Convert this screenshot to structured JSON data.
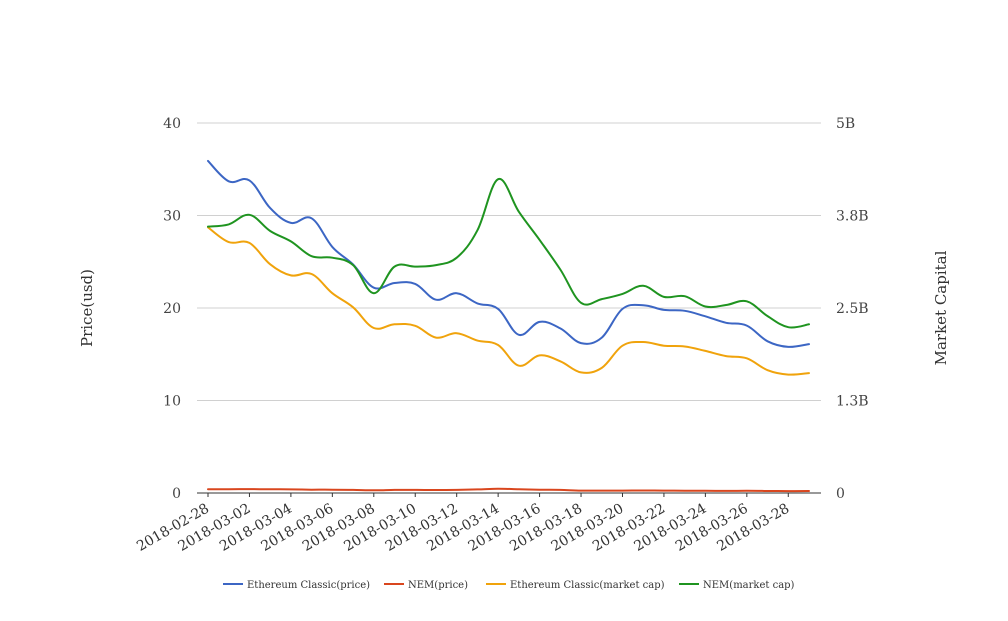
{
  "chart_data": {
    "type": "line",
    "y_left_label": "Price(usd)",
    "y_right_label": "Market Capital",
    "y_left_ticks": [
      "0",
      "10",
      "20",
      "30",
      "40"
    ],
    "y_right_ticks": [
      "0",
      "1.3B",
      "2.5B",
      "3.8B",
      "5B"
    ],
    "ylim_left": [
      0,
      40
    ],
    "ylim_right": [
      0,
      5000000000
    ],
    "grid": true,
    "legend_position": "bottom",
    "x_tick_labels": [
      "2018-02-28",
      "2018-03-02",
      "2018-03-04",
      "2018-03-06",
      "2018-03-08",
      "2018-03-10",
      "2018-03-12",
      "2018-03-14",
      "2018-03-16",
      "2018-03-18",
      "2018-03-20",
      "2018-03-22",
      "2018-03-24",
      "2018-03-26",
      "2018-03-28"
    ],
    "x": [
      "2018-02-28",
      "2018-03-01",
      "2018-03-02",
      "2018-03-03",
      "2018-03-04",
      "2018-03-05",
      "2018-03-06",
      "2018-03-07",
      "2018-03-08",
      "2018-03-09",
      "2018-03-10",
      "2018-03-11",
      "2018-03-12",
      "2018-03-13",
      "2018-03-14",
      "2018-03-15",
      "2018-03-16",
      "2018-03-17",
      "2018-03-18",
      "2018-03-19",
      "2018-03-20",
      "2018-03-21",
      "2018-03-22",
      "2018-03-23",
      "2018-03-24",
      "2018-03-25",
      "2018-03-26",
      "2018-03-27",
      "2018-03-28",
      "2018-03-29"
    ],
    "series": [
      {
        "name": "Ethereum Classic(price)",
        "axis": "left",
        "color": "#3c66c4",
        "values": [
          35.9,
          33.7,
          33.8,
          30.8,
          29.2,
          29.7,
          26.6,
          24.7,
          22.2,
          22.7,
          22.6,
          20.9,
          21.6,
          20.5,
          19.9,
          17.1,
          18.5,
          17.8,
          16.2,
          16.8,
          19.9,
          20.3,
          19.8,
          19.7,
          19.1,
          18.4,
          18.1,
          16.4,
          15.8,
          16.1
        ]
      },
      {
        "name": "NEM(price)",
        "axis": "left",
        "color": "#d9461e",
        "values": [
          0.4,
          0.41,
          0.42,
          0.4,
          0.39,
          0.36,
          0.36,
          0.34,
          0.29,
          0.33,
          0.33,
          0.32,
          0.34,
          0.39,
          0.46,
          0.4,
          0.36,
          0.33,
          0.26,
          0.26,
          0.26,
          0.27,
          0.26,
          0.25,
          0.24,
          0.23,
          0.24,
          0.22,
          0.2,
          0.22
        ]
      },
      {
        "name": "Ethereum Classic(market cap)",
        "axis": "right",
        "color": "#f0a30c",
        "values": [
          3590000000,
          3390000000,
          3380000000,
          3090000000,
          2940000000,
          2960000000,
          2700000000,
          2510000000,
          2230000000,
          2280000000,
          2260000000,
          2100000000,
          2160000000,
          2060000000,
          2000000000,
          1720000000,
          1860000000,
          1780000000,
          1630000000,
          1690000000,
          1990000000,
          2040000000,
          1990000000,
          1980000000,
          1920000000,
          1850000000,
          1820000000,
          1660000000,
          1600000000,
          1620000000
        ]
      },
      {
        "name": "NEM(market cap)",
        "axis": "right",
        "color": "#1f9420",
        "values": [
          3600000000,
          3630000000,
          3760000000,
          3540000000,
          3400000000,
          3200000000,
          3180000000,
          3080000000,
          2700000000,
          3060000000,
          3060000000,
          3080000000,
          3180000000,
          3550000000,
          4240000000,
          3800000000,
          3420000000,
          3020000000,
          2570000000,
          2620000000,
          2690000000,
          2800000000,
          2650000000,
          2660000000,
          2520000000,
          2540000000,
          2590000000,
          2390000000,
          2240000000,
          2280000000
        ]
      }
    ]
  }
}
